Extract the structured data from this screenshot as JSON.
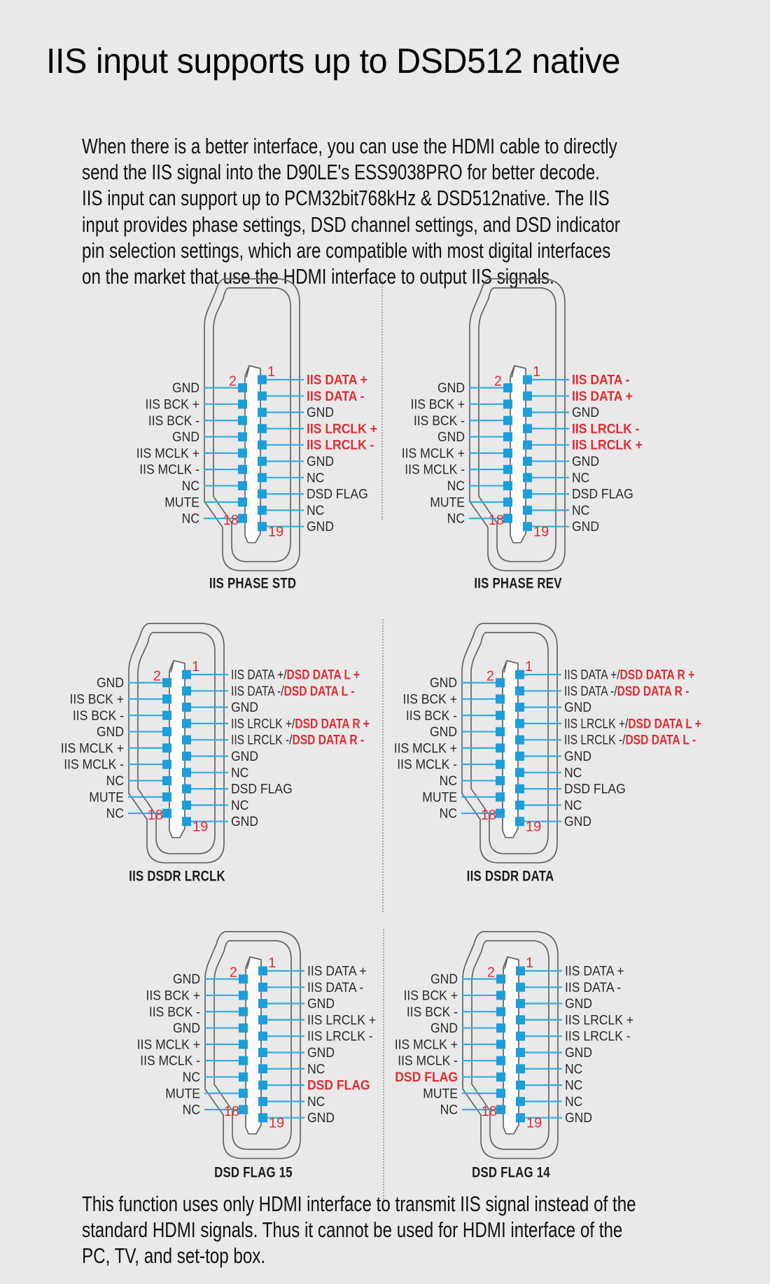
{
  "title": "IIS input supports up to DSD512 native",
  "intro_lines": [
    "When there is a better interface, you can use the HDMI cable to directly",
    "send the IIS signal into the D90LE's ESS9038PRO for better decode.",
    "IIS input can support up to PCM32bit768kHz & DSD512native. The IIS",
    "input provides phase settings, DSD channel settings, and DSD indicator",
    "pin selection settings, which are compatible with most digital interfaces",
    "on the market that use the HDMI interface to output IIS signals."
  ],
  "footer_lines": [
    "This function uses only HDMI interface to transmit IIS signal instead of the",
    "standard HDMI signals. Thus it cannot be used for HDMI interface of the",
    "PC, TV, and set-top box."
  ],
  "pin_numbers": {
    "one": "1",
    "two": "2",
    "eighteen": "18",
    "nineteen": "19"
  },
  "colors": {
    "background": "#e9e9e9",
    "pin_blue": "#1d9ed9",
    "line_blue": "#35abe0",
    "highlight_red": "#e02b31",
    "outline_gray": "#646464",
    "text_dark": "#2a2a2a"
  },
  "diagrams": [
    {
      "caption": "IIS PHASE STD",
      "left": [
        [
          {
            "t": "GND"
          }
        ],
        [
          {
            "t": "IIS BCK +"
          }
        ],
        [
          {
            "t": "IIS BCK -"
          }
        ],
        [
          {
            "t": "GND"
          }
        ],
        [
          {
            "t": "IIS MCLK +"
          }
        ],
        [
          {
            "t": "IIS MCLK -"
          }
        ],
        [
          {
            "t": "NC"
          }
        ],
        [
          {
            "t": "MUTE"
          }
        ],
        [
          {
            "t": "NC"
          }
        ]
      ],
      "right": [
        [
          {
            "t": "IIS DATA +",
            "red": true
          }
        ],
        [
          {
            "t": "IIS DATA -",
            "red": true
          }
        ],
        [
          {
            "t": "GND"
          }
        ],
        [
          {
            "t": "IIS LRCLK +",
            "red": true
          }
        ],
        [
          {
            "t": "IIS LRCLK -",
            "red": true
          }
        ],
        [
          {
            "t": "GND"
          }
        ],
        [
          {
            "t": "NC"
          }
        ],
        [
          {
            "t": "DSD FLAG"
          }
        ],
        [
          {
            "t": "NC"
          }
        ],
        [
          {
            "t": "GND"
          }
        ]
      ]
    },
    {
      "caption": "IIS PHASE REV",
      "left": [
        [
          {
            "t": "GND"
          }
        ],
        [
          {
            "t": "IIS BCK +"
          }
        ],
        [
          {
            "t": "IIS BCK -"
          }
        ],
        [
          {
            "t": "GND"
          }
        ],
        [
          {
            "t": "IIS MCLK +"
          }
        ],
        [
          {
            "t": "IIS MCLK -"
          }
        ],
        [
          {
            "t": "NC"
          }
        ],
        [
          {
            "t": "MUTE"
          }
        ],
        [
          {
            "t": "NC"
          }
        ]
      ],
      "right": [
        [
          {
            "t": "IIS DATA -",
            "red": true
          }
        ],
        [
          {
            "t": "IIS DATA +",
            "red": true
          }
        ],
        [
          {
            "t": "GND"
          }
        ],
        [
          {
            "t": "IIS LRCLK -",
            "red": true
          }
        ],
        [
          {
            "t": "IIS LRCLK +",
            "red": true
          }
        ],
        [
          {
            "t": "GND"
          }
        ],
        [
          {
            "t": "NC"
          }
        ],
        [
          {
            "t": "DSD FLAG"
          }
        ],
        [
          {
            "t": "NC"
          }
        ],
        [
          {
            "t": "GND"
          }
        ]
      ]
    },
    {
      "caption": "IIS DSDR LRCLK",
      "left": [
        [
          {
            "t": "GND"
          }
        ],
        [
          {
            "t": "IIS BCK +"
          }
        ],
        [
          {
            "t": "IIS BCK -"
          }
        ],
        [
          {
            "t": "GND"
          }
        ],
        [
          {
            "t": "IIS MCLK +"
          }
        ],
        [
          {
            "t": "IIS MCLK -"
          }
        ],
        [
          {
            "t": "NC"
          }
        ],
        [
          {
            "t": "MUTE"
          }
        ],
        [
          {
            "t": "NC"
          }
        ]
      ],
      "right": [
        [
          {
            "t": "IIS DATA +/"
          },
          {
            "t": "DSD DATA L +",
            "red": true
          }
        ],
        [
          {
            "t": "IIS DATA -/"
          },
          {
            "t": "DSD DATA L -",
            "red": true
          }
        ],
        [
          {
            "t": "GND"
          }
        ],
        [
          {
            "t": "IIS LRCLK +/"
          },
          {
            "t": "DSD DATA R +",
            "red": true
          }
        ],
        [
          {
            "t": "IIS LRCLK -/"
          },
          {
            "t": "DSD DATA R -",
            "red": true
          }
        ],
        [
          {
            "t": "GND"
          }
        ],
        [
          {
            "t": "NC"
          }
        ],
        [
          {
            "t": "DSD FLAG"
          }
        ],
        [
          {
            "t": "NC"
          }
        ],
        [
          {
            "t": "GND"
          }
        ]
      ]
    },
    {
      "caption": "IIS DSDR DATA",
      "left": [
        [
          {
            "t": "GND"
          }
        ],
        [
          {
            "t": "IIS BCK +"
          }
        ],
        [
          {
            "t": "IIS BCK -"
          }
        ],
        [
          {
            "t": "GND"
          }
        ],
        [
          {
            "t": "IIS MCLK +"
          }
        ],
        [
          {
            "t": "IIS MCLK -"
          }
        ],
        [
          {
            "t": "NC"
          }
        ],
        [
          {
            "t": "MUTE"
          }
        ],
        [
          {
            "t": "NC"
          }
        ]
      ],
      "right": [
        [
          {
            "t": "IIS DATA +/"
          },
          {
            "t": "DSD DATA R +",
            "red": true
          }
        ],
        [
          {
            "t": "IIS DATA -/"
          },
          {
            "t": "DSD DATA R -",
            "red": true
          }
        ],
        [
          {
            "t": "GND"
          }
        ],
        [
          {
            "t": "IIS LRCLK +/"
          },
          {
            "t": "DSD DATA L +",
            "red": true
          }
        ],
        [
          {
            "t": "IIS LRCLK -/"
          },
          {
            "t": "DSD DATA L -",
            "red": true
          }
        ],
        [
          {
            "t": "GND"
          }
        ],
        [
          {
            "t": "NC"
          }
        ],
        [
          {
            "t": "DSD FLAG"
          }
        ],
        [
          {
            "t": "NC"
          }
        ],
        [
          {
            "t": "GND"
          }
        ]
      ]
    },
    {
      "caption": "DSD FLAG 15",
      "left": [
        [
          {
            "t": "GND"
          }
        ],
        [
          {
            "t": "IIS BCK +"
          }
        ],
        [
          {
            "t": "IIS BCK -"
          }
        ],
        [
          {
            "t": "GND"
          }
        ],
        [
          {
            "t": "IIS MCLK +"
          }
        ],
        [
          {
            "t": "IIS MCLK -"
          }
        ],
        [
          {
            "t": "NC"
          }
        ],
        [
          {
            "t": "MUTE"
          }
        ],
        [
          {
            "t": "NC"
          }
        ]
      ],
      "right": [
        [
          {
            "t": "IIS DATA +"
          }
        ],
        [
          {
            "t": "IIS DATA -"
          }
        ],
        [
          {
            "t": "GND"
          }
        ],
        [
          {
            "t": "IIS LRCLK +"
          }
        ],
        [
          {
            "t": "IIS LRCLK -"
          }
        ],
        [
          {
            "t": "GND"
          }
        ],
        [
          {
            "t": "NC"
          }
        ],
        [
          {
            "t": "DSD FLAG",
            "red": true
          }
        ],
        [
          {
            "t": "NC"
          }
        ],
        [
          {
            "t": "GND"
          }
        ]
      ]
    },
    {
      "caption": "DSD FLAG 14",
      "left": [
        [
          {
            "t": "GND"
          }
        ],
        [
          {
            "t": "IIS BCK +"
          }
        ],
        [
          {
            "t": "IIS BCK -"
          }
        ],
        [
          {
            "t": "GND"
          }
        ],
        [
          {
            "t": "IIS MCLK +"
          }
        ],
        [
          {
            "t": "IIS MCLK -"
          }
        ],
        [
          {
            "t": "DSD FLAG",
            "red": true
          }
        ],
        [
          {
            "t": "MUTE"
          }
        ],
        [
          {
            "t": "NC"
          }
        ]
      ],
      "right": [
        [
          {
            "t": "IIS DATA +"
          }
        ],
        [
          {
            "t": "IIS DATA -"
          }
        ],
        [
          {
            "t": "GND"
          }
        ],
        [
          {
            "t": "IIS LRCLK +"
          }
        ],
        [
          {
            "t": "IIS LRCLK -"
          }
        ],
        [
          {
            "t": "GND"
          }
        ],
        [
          {
            "t": "NC"
          }
        ],
        [
          {
            "t": "NC"
          }
        ],
        [
          {
            "t": "NC"
          }
        ],
        [
          {
            "t": "GND"
          }
        ]
      ]
    }
  ]
}
